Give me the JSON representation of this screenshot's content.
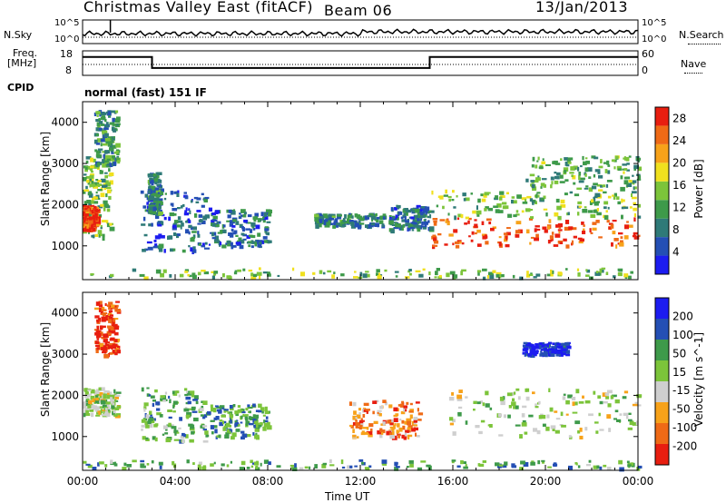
{
  "header": {
    "title": "Christmas Valley East (fitACF)",
    "beam": "Beam 06",
    "date": "13/Jan/2013"
  },
  "top_panel": {
    "left_label": "N.Sky",
    "left_ticks": [
      "10^5",
      "10^0"
    ],
    "right_ticks": [
      "10^5",
      "10^0"
    ],
    "right_label": "N.Search"
  },
  "freq_panel": {
    "left_label_1": "Freq.",
    "left_label_2": "[MHz]",
    "left_ticks": [
      "18",
      "8"
    ],
    "right_ticks": [
      "60",
      "0"
    ],
    "right_label": "Nave"
  },
  "cpid": {
    "label": "CPID",
    "value": "normal (fast) 151 IF"
  },
  "colors": {
    "power_scale": [
      "#1c1cf0",
      "#244fb4",
      "#2f7a78",
      "#3e9a4a",
      "#7cc43a",
      "#f0e01e",
      "#f7a21a",
      "#ef6a16",
      "#e81e10"
    ],
    "velocity_scale": [
      "#e81e10",
      "#ef6a16",
      "#f7a21a",
      "#cfcfcf",
      "#7cc43a",
      "#3e9a4a",
      "#244fb4",
      "#1c1cf0"
    ]
  },
  "chart_data": [
    {
      "type": "heatmap",
      "name": "power",
      "xlabel": "",
      "ylabel": "Slant Range [km]",
      "x_ticks": [
        "00:00",
        "04:00",
        "08:00",
        "12:00",
        "16:00",
        "20:00",
        "00:00"
      ],
      "y_ticks": [
        "1000",
        "2000",
        "3000",
        "4000"
      ],
      "ylim": [
        180,
        4500
      ],
      "colorbar": {
        "label": "Power [dB]",
        "ticks": [
          "4",
          "8",
          "12",
          "16",
          "20",
          "24",
          "28"
        ],
        "range": [
          0,
          30
        ]
      },
      "regions": [
        {
          "t0": 0.0,
          "t1": 1.2,
          "r0": 1200,
          "r1": 3200,
          "level": 0.45
        },
        {
          "t0": 0.0,
          "t1": 0.6,
          "r0": 1400,
          "r1": 2000,
          "level": 0.9
        },
        {
          "t0": 0.5,
          "t1": 1.5,
          "r0": 3000,
          "r1": 4300,
          "level": 0.35
        },
        {
          "t0": 2.5,
          "t1": 5.5,
          "r0": 900,
          "r1": 2400,
          "level": 0.2
        },
        {
          "t0": 5.5,
          "t1": 8.0,
          "r0": 1000,
          "r1": 1900,
          "level": 0.25
        },
        {
          "t0": 2.8,
          "t1": 3.3,
          "r0": 1800,
          "r1": 2800,
          "level": 0.3
        },
        {
          "t0": 10.0,
          "t1": 13.0,
          "r0": 1500,
          "r1": 1800,
          "level": 0.3
        },
        {
          "t0": 13.2,
          "t1": 15.0,
          "r0": 1400,
          "r1": 2000,
          "level": 0.25
        },
        {
          "t0": 15.0,
          "t1": 24.0,
          "r0": 1000,
          "r1": 1700,
          "level": 0.9
        },
        {
          "t0": 15.0,
          "t1": 24.0,
          "r0": 1700,
          "r1": 2400,
          "level": 0.45
        },
        {
          "t0": 19.0,
          "t1": 24.0,
          "r0": 2400,
          "r1": 3200,
          "level": 0.4
        },
        {
          "t0": 0.0,
          "t1": 24.0,
          "r0": 250,
          "r1": 480,
          "level": 0.45
        }
      ]
    },
    {
      "type": "heatmap",
      "name": "velocity",
      "xlabel": "Time UT",
      "ylabel": "Slant Range [km]",
      "x_ticks": [
        "00:00",
        "04:00",
        "08:00",
        "12:00",
        "16:00",
        "20:00",
        "00:00"
      ],
      "y_ticks": [
        "1000",
        "2000",
        "3000",
        "4000"
      ],
      "ylim": [
        180,
        4500
      ],
      "colorbar": {
        "label": "Velocity [m s^-1]",
        "ticks": [
          "200",
          "100",
          "50",
          "15",
          "-15",
          "-50",
          "-100",
          "-200"
        ],
        "range": [
          -250,
          250
        ]
      },
      "regions": [
        {
          "t0": 0.0,
          "t1": 1.5,
          "r0": 1500,
          "r1": 2200,
          "level": 0.5
        },
        {
          "t0": 0.5,
          "t1": 1.5,
          "r0": 3000,
          "r1": 4300,
          "level": 0.1
        },
        {
          "t0": 2.5,
          "t1": 5.5,
          "r0": 900,
          "r1": 2200,
          "level": 0.62
        },
        {
          "t0": 5.5,
          "t1": 8.0,
          "r0": 1000,
          "r1": 1800,
          "level": 0.68
        },
        {
          "t0": 11.5,
          "t1": 14.5,
          "r0": 1000,
          "r1": 1900,
          "level": 0.25
        },
        {
          "t0": 15.5,
          "t1": 24.0,
          "r0": 1000,
          "r1": 2200,
          "level": 0.5
        },
        {
          "t0": 19.0,
          "t1": 21.0,
          "r0": 3000,
          "r1": 3300,
          "level": 0.9
        },
        {
          "t0": 0.0,
          "t1": 24.0,
          "r0": 250,
          "r1": 450,
          "level": 0.65
        }
      ]
    },
    {
      "type": "line",
      "name": "transmit-frequency",
      "ylabel": "[MHz]",
      "x": [
        0,
        3.0,
        3.0,
        15.0,
        15.0,
        24.0
      ],
      "y": [
        15.5,
        15.5,
        11.0,
        11.0,
        15.5,
        15.5
      ],
      "ylim": [
        8,
        18
      ]
    }
  ]
}
